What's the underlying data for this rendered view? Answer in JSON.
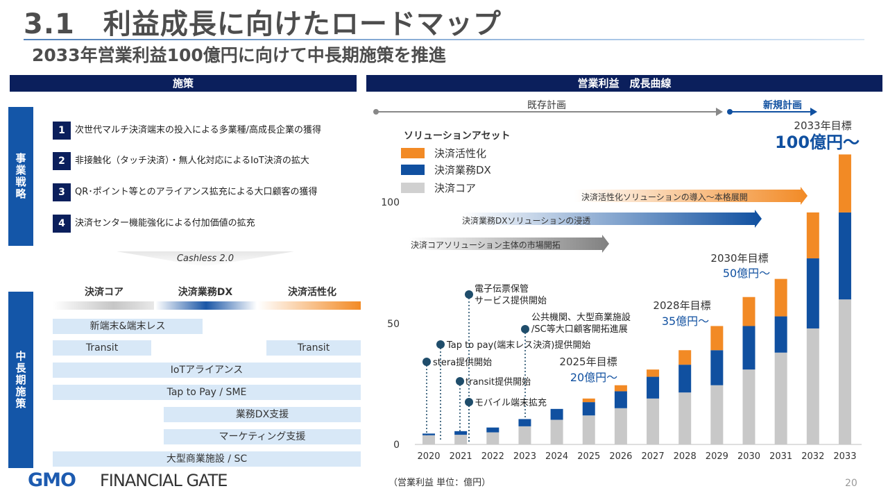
{
  "header": {
    "title": "3.1　利益成長に向けたロードマップ",
    "subtitle": "2033年営業利益100億円に向けて中長期施策を推進"
  },
  "left": {
    "band": "施策",
    "strategy_label": "事業戦略",
    "strategies": [
      {
        "num": "1",
        "text": "次世代マルチ決済端末の投入による多業種/高成長企業の獲得"
      },
      {
        "num": "2",
        "text": "非接触化（タッチ決済）・無人化対応によるIoT決済の拡大"
      },
      {
        "num": "3",
        "text": "QR･ポイント等とのアライアンス拡充による大口顧客の獲得"
      },
      {
        "num": "4",
        "text": "決済センター機能強化による付加価値の拡充"
      }
    ],
    "cashless": "Cashless 2.0",
    "midterm_label": "中長期施策",
    "columns": [
      "決済コア",
      "決済業務DX",
      "決済活性化"
    ],
    "measures": [
      "新端末&端末レス",
      "Transit",
      "Transit",
      "IoTアライアンス",
      "Tap to Pay / SME",
      "業務DX支援",
      "マーケティング支援",
      "大型商業施設 / SC"
    ]
  },
  "right": {
    "band": "営業利益　成長曲線",
    "existing_plan": "既存計画",
    "new_plan": "新規計画"
  },
  "chart_data": {
    "type": "bar",
    "stacked": true,
    "categories": [
      "2020",
      "2021",
      "2022",
      "2023",
      "2024",
      "2025",
      "2026",
      "2027",
      "2028",
      "2029",
      "2030",
      "2031",
      "2032",
      "2033"
    ],
    "series": [
      {
        "name": "決済コア",
        "color": "#c8c8c8",
        "values": [
          3.8,
          4.0,
          5.0,
          7.5,
          10.2,
          12.0,
          15.0,
          19.0,
          21.5,
          24.5,
          31.0,
          38.0,
          48.0,
          60.0
        ]
      },
      {
        "name": "決済業務DX",
        "color": "#1050a0",
        "values": [
          0.7,
          1.5,
          2.0,
          3.0,
          4.5,
          5.5,
          7.0,
          9.0,
          11.5,
          14.5,
          18.0,
          15.0,
          29.0,
          36.0
        ]
      },
      {
        "name": "決済活性化",
        "color": "#f28a25",
        "values": [
          0,
          0,
          0,
          0,
          0,
          1.5,
          2.5,
          3.0,
          6.0,
          10.0,
          12.0,
          15.5,
          19.0,
          24.0
        ]
      }
    ],
    "legend_title": "ソリューションアセット",
    "ylim": [
      0,
      120
    ],
    "yticks": [
      0,
      50,
      100
    ],
    "unit_note": "（営業利益 単位：億円）",
    "targets": [
      {
        "year": "2025",
        "label": "2025年目標",
        "value": "20億円～"
      },
      {
        "year": "2028",
        "label": "2028年目標",
        "value": "35億円～"
      },
      {
        "year": "2030",
        "label": "2030年目標",
        "value": "50億円～"
      },
      {
        "year": "2033",
        "label": "2033年目標",
        "value": "100億円～"
      }
    ],
    "milestones": [
      {
        "year": "2020",
        "text": "stera提供開始"
      },
      {
        "year": "2020",
        "text": "Tap to pay(端末レス決済)提供開始"
      },
      {
        "year": "2021",
        "text": "電子伝票保管"
      },
      {
        "year": "2021",
        "text": "サービス提供開始"
      },
      {
        "year": "2021",
        "text": "transit提供開始"
      },
      {
        "year": "2021",
        "text": "モバイル端末拡充"
      },
      {
        "year": "2023",
        "text": "公共機関、大型商業施設"
      },
      {
        "year": "2023",
        "text": "/SC等大口顧客開拓進展"
      }
    ],
    "arrows": [
      {
        "text": "決済活性化ソリューションの導入～本格展開",
        "color": "#f28a25"
      },
      {
        "text": "決済業務DXソリューションの浸透",
        "color": "#1050a0"
      },
      {
        "text": "決済コアソリューション主体の市場開拓",
        "color": "#808080"
      }
    ]
  },
  "footer": {
    "logo_gmo": "GMO",
    "logo_name": "FINANCIAL GATE",
    "page": "20"
  }
}
